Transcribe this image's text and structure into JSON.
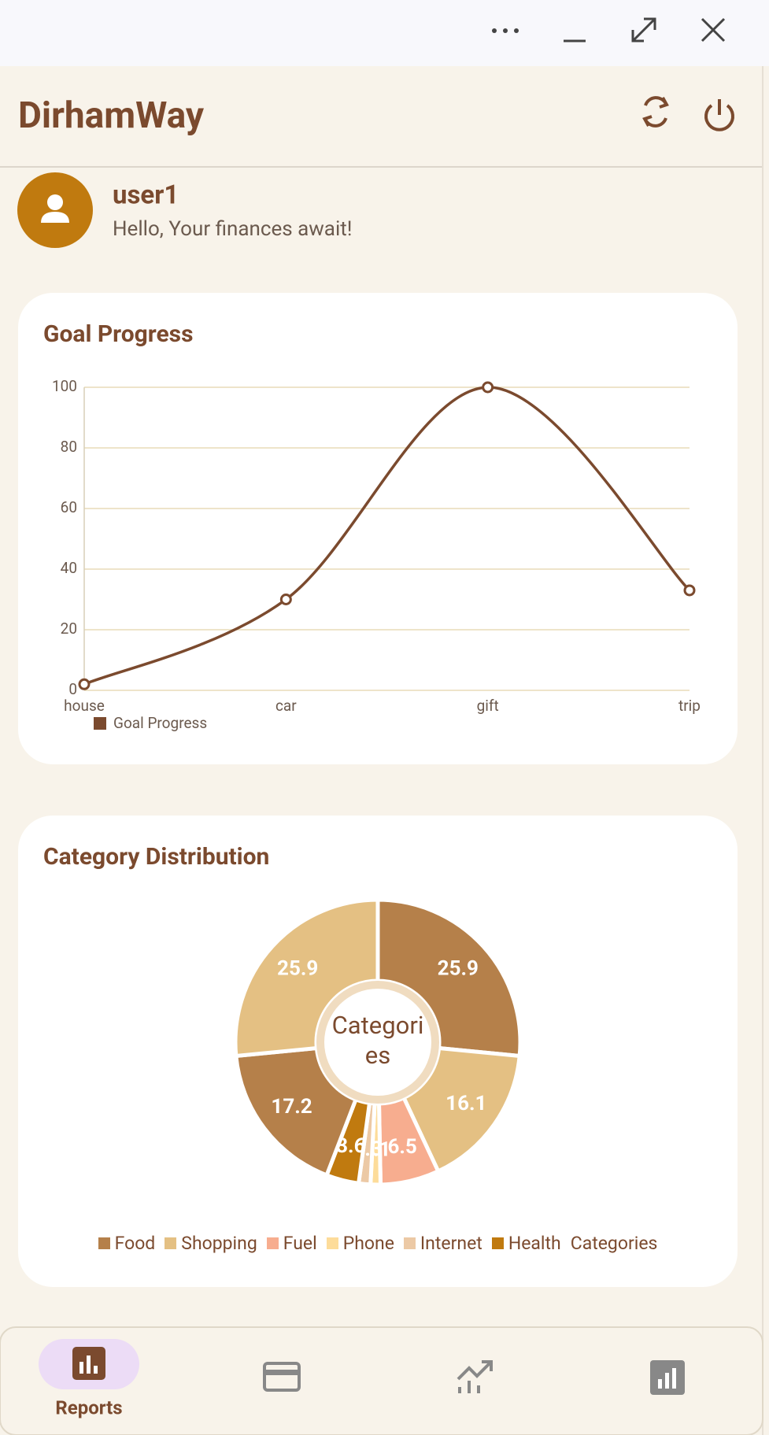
{
  "app": {
    "title": "DirhamWay"
  },
  "user": {
    "name": "user1",
    "greeting": "Hello, Your finances await!"
  },
  "chart_data": [
    {
      "type": "line",
      "title": "Goal Progress",
      "categories": [
        "house",
        "car",
        "gift",
        "trip"
      ],
      "series": [
        {
          "name": "Goal Progress",
          "color": "#7b4a2e",
          "values": [
            2,
            30,
            100,
            33
          ]
        }
      ],
      "ylim": [
        0,
        100
      ],
      "yticks": [
        0,
        20,
        40,
        60,
        80,
        100
      ],
      "grid": true,
      "smooth": true,
      "legend": "bottom-left"
    },
    {
      "type": "pie",
      "title": "Category Distribution",
      "donut": true,
      "center_label": "Categories",
      "series_name": "Categories",
      "categories": [
        "Food",
        "Shopping",
        "Fuel",
        "Phone",
        "Internet",
        "Health",
        null,
        null
      ],
      "values": [
        25.9,
        16.1,
        6.5,
        1.1,
        1.3,
        3.6,
        17.2,
        25.9
      ],
      "colors": [
        "#b5804a",
        "#e4c083",
        "#f7ad8f",
        "#fddc9a",
        "#ecc9a5",
        "#c07a0f",
        "#b5804a",
        "#e4c083"
      ],
      "legend": "bottom"
    }
  ],
  "nav": {
    "active_label": "Reports"
  }
}
